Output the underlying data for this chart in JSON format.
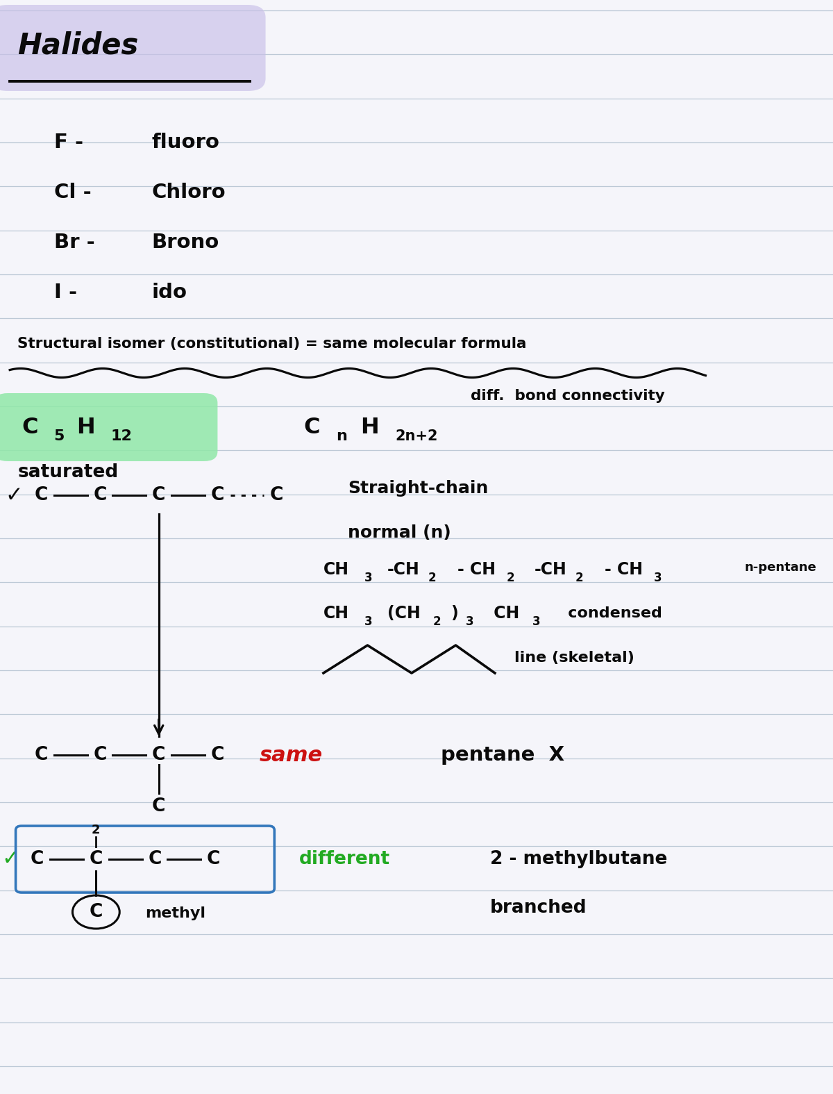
{
  "bg_color": "#f5f5fa",
  "line_color": "#b0bece",
  "text_color": "#0a0a0a",
  "title": "Halides",
  "title_highlight": "#c8bfe8",
  "halides": [
    [
      "F -",
      "fluoro"
    ],
    [
      "Cl -",
      "Chloro"
    ],
    [
      "Br -",
      "Brono"
    ],
    [
      "I -",
      "ido"
    ]
  ],
  "structural_isomer_line1": "Structural isomer (constitutional) = same molecular formula",
  "structural_isomer_line2": "diff. bond connectivity",
  "c5h12_highlight": "#90e8a8",
  "saturated": "saturated",
  "n_pentane": "n-pentane",
  "same_text": "same",
  "same_color": "#cc1111",
  "pentane_x": "pentane  X",
  "different_text": "different",
  "different_color": "#22aa22",
  "check_color": "#22aa22",
  "methylbutane": "2 - methylbutane",
  "branched": "branched",
  "methyl": "methyl",
  "box_color": "#3377bb",
  "figw": 12.0,
  "figh": 15.75,
  "dpi": 100
}
